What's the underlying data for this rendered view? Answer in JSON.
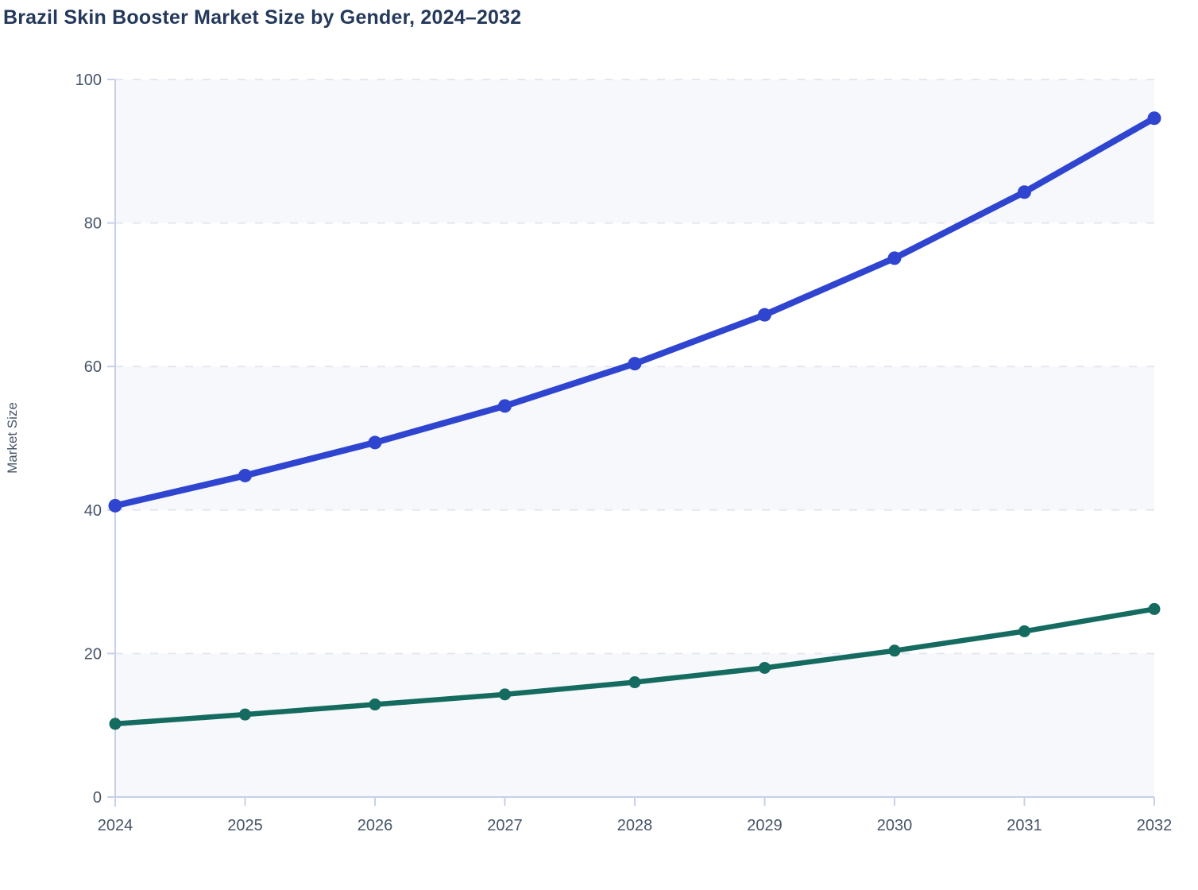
{
  "page": {
    "title": "Brazil Skin Booster Market Size by Gender, 2024–2032"
  },
  "y_axis": {
    "label": "Market Size"
  },
  "colors": {
    "title_text": "#24395b",
    "tick_text": "#475569",
    "axis_line": "#c6d0ea",
    "grid_line": "#e4e7ee",
    "band_fill": "#f6f8fb",
    "series_blue": "#2f45d0",
    "series_teal": "#156b60",
    "background": "#ffffff"
  },
  "chart_data": {
    "type": "line",
    "title": "Brazil Skin Booster Market Size by Gender, 2024–2032",
    "xlabel": "",
    "ylabel": "Market Size",
    "categories": [
      2024,
      2025,
      2026,
      2027,
      2028,
      2029,
      2030,
      2031,
      2032
    ],
    "series": [
      {
        "name": "blue",
        "color": "#2f45d0",
        "line_width": 8,
        "marker_radius": 8.5,
        "values": [
          40.6,
          44.8,
          49.4,
          54.5,
          60.4,
          67.2,
          75.1,
          84.3,
          94.6
        ]
      },
      {
        "name": "teal",
        "color": "#156b60",
        "line_width": 6.5,
        "marker_radius": 7.5,
        "values": [
          10.2,
          11.5,
          12.9,
          14.3,
          16.0,
          18.0,
          20.4,
          23.1,
          26.2
        ]
      }
    ],
    "ylim": [
      0,
      100
    ],
    "yticks": [
      0,
      20,
      40,
      60,
      80,
      100
    ],
    "grid": "horizontal-dashed",
    "legend": "none",
    "band_ranges": [
      [
        0,
        20
      ],
      [
        40,
        60
      ],
      [
        80,
        100
      ]
    ]
  }
}
